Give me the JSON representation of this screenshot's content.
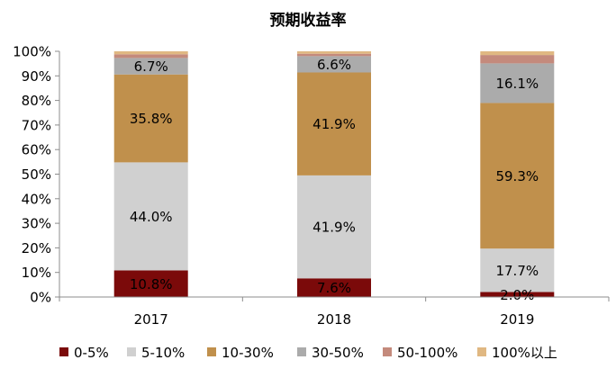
{
  "chart_data": {
    "type": "bar",
    "stacked": true,
    "title": "预期收益率",
    "categories": [
      "2017",
      "2018",
      "2019"
    ],
    "series": [
      {
        "name": "0-5%",
        "color": "#7B0A0A",
        "values": [
          10.8,
          7.6,
          2.0
        ]
      },
      {
        "name": "5-10%",
        "color": "#D0D0D0",
        "values": [
          44.0,
          41.9,
          17.7
        ]
      },
      {
        "name": "10-30%",
        "color": "#C0904C",
        "values": [
          35.8,
          41.9,
          59.3
        ]
      },
      {
        "name": "30-50%",
        "color": "#ABABAB",
        "values": [
          6.7,
          6.6,
          16.1
        ]
      },
      {
        "name": "50-100%",
        "color": "#C48A7C",
        "values": [
          1.5,
          1.0,
          3.4
        ]
      },
      {
        "name": "100%以上",
        "color": "#E0B882",
        "values": [
          1.2,
          1.0,
          1.5
        ]
      }
    ],
    "data_labels": [
      {
        "series": "0-5%",
        "labels": [
          "10.8%",
          "7.6%",
          "2.0%"
        ]
      },
      {
        "series": "5-10%",
        "labels": [
          "44.0%",
          "41.9%",
          "17.7%"
        ]
      },
      {
        "series": "10-30%",
        "labels": [
          "35.8%",
          "41.9%",
          "59.3%"
        ]
      },
      {
        "series": "30-50%",
        "labels": [
          "6.7%",
          "6.6%",
          "16.1%"
        ]
      }
    ],
    "y_ticks": [
      "0%",
      "10%",
      "20%",
      "30%",
      "40%",
      "50%",
      "60%",
      "70%",
      "80%",
      "90%",
      "100%"
    ],
    "ylim": [
      0,
      100
    ],
    "xlabel": "",
    "ylabel": "",
    "legend_position": "bottom",
    "grid": false
  }
}
